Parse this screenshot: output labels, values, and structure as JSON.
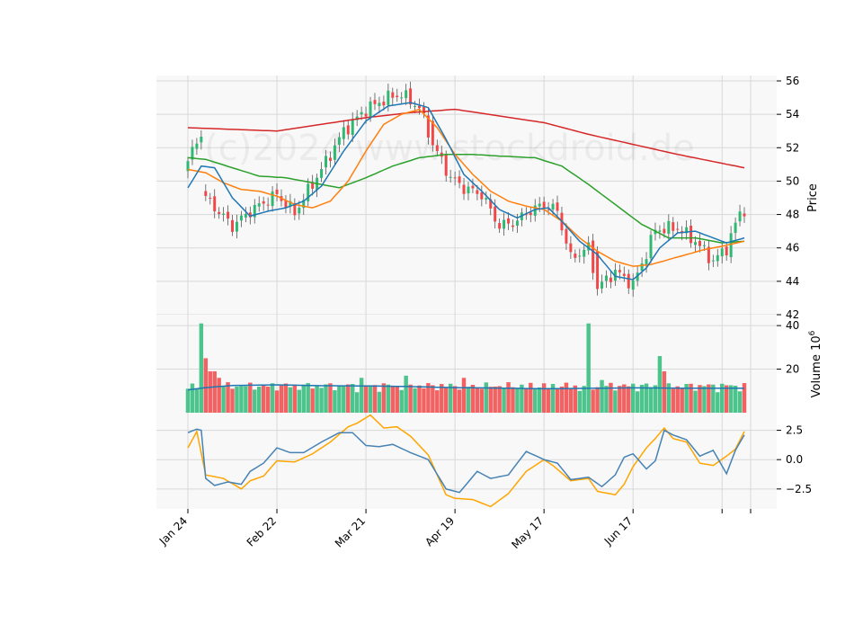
{
  "chart_data": {
    "type": "candlestick",
    "watermark": "(c)2024 www.stockdroid.de",
    "colors": {
      "up": "#2eb872",
      "down": "#f04848",
      "volume_up": "#4cc48c",
      "volume_down": "#f26262",
      "ma_short": "#1f77b4",
      "ma_mid": "#ff7f0e",
      "ma_long": "#2ca02c",
      "ma_longest": "#d62728",
      "volume_avg": "#1f77b4",
      "osc_a": "#4682b4",
      "osc_b": "#ffa500",
      "panel_bg": "#f8f8f8",
      "grid": "#d8d8d8"
    },
    "x_tick_labels": [
      {
        "i": 0,
        "label": "Jan 24"
      },
      {
        "i": 20,
        "label": "Feb 22"
      },
      {
        "i": 40,
        "label": "Mar 21"
      },
      {
        "i": 60,
        "label": "Apr 19"
      },
      {
        "i": 80,
        "label": "May 17"
      },
      {
        "i": 100,
        "label": "Jun 17"
      }
    ],
    "price_panel": {
      "ylabel": "Price",
      "ylim": [
        42,
        56
      ],
      "yticks": [
        42,
        44,
        46,
        48,
        50,
        52,
        54,
        56
      ],
      "candles": [],
      "ma_short": [],
      "ma_mid": [],
      "ma_long": [],
      "ma_longest": []
    },
    "volume_panel": {
      "ylabel": "Volume  10^6",
      "ylim": [
        0,
        45
      ],
      "yticks": [
        20,
        40
      ],
      "volume": [],
      "volume_avg": []
    },
    "oscillator_panel": {
      "ylim": [
        -4.2,
        4.0
      ],
      "yticks": [
        2.5,
        0.0,
        -2.5
      ],
      "ytick_labels": [
        "2.5",
        "0.0",
        "−2.5"
      ],
      "line_a": [],
      "line_b": []
    }
  }
}
